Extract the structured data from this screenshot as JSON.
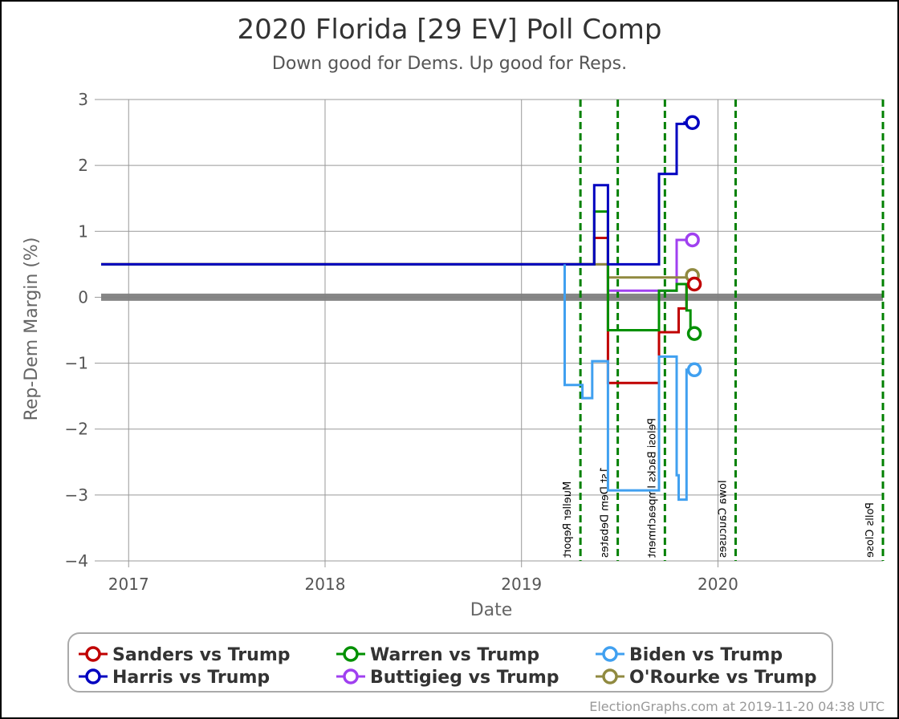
{
  "chart_data": {
    "type": "line",
    "title": "2020 Florida [29 EV] Poll Comp",
    "subtitle": "Down good for Dems. Up good for Reps.",
    "xlabel": "Date",
    "ylabel": "Rep-Dem Margin (%)",
    "ylim": [
      -4,
      3
    ],
    "xlim": [
      2016.86,
      2020.84
    ],
    "yticks": [
      3,
      2,
      1,
      0,
      -1,
      -2,
      -3,
      -4
    ],
    "ytick_labels": [
      "3",
      "2",
      "1",
      "0",
      "−1",
      "−2",
      "−3",
      "−4"
    ],
    "xticks": [
      2017,
      2018,
      2019,
      2020
    ],
    "xtick_labels": [
      "2017",
      "2018",
      "2019",
      "2020"
    ],
    "grid": true,
    "legend_position": "bottom",
    "events": [
      {
        "label": "Mueller Report",
        "x": 2019.3
      },
      {
        "label": "1st Dem Debates",
        "x": 2019.49
      },
      {
        "label": "Pelosi Backs Impeachment",
        "x": 2019.73
      },
      {
        "label": "Iowa Caucuses",
        "x": 2020.09
      },
      {
        "label": "Polls Close",
        "x": 2020.84
      }
    ],
    "series": [
      {
        "name": "Sanders vs Trump",
        "color": "#c00000",
        "points": [
          [
            2016.86,
            0.5
          ],
          [
            2019.37,
            0.5
          ],
          [
            2019.37,
            0.9
          ],
          [
            2019.44,
            0.9
          ],
          [
            2019.44,
            -1.3
          ],
          [
            2019.7,
            -1.3
          ],
          [
            2019.7,
            -0.53
          ],
          [
            2019.8,
            -0.53
          ],
          [
            2019.8,
            -0.17
          ],
          [
            2019.84,
            -0.17
          ],
          [
            2019.84,
            0.2
          ],
          [
            2019.88,
            0.2
          ]
        ]
      },
      {
        "name": "Warren vs Trump",
        "color": "#009000",
        "points": [
          [
            2016.86,
            0.5
          ],
          [
            2019.37,
            0.5
          ],
          [
            2019.37,
            1.3
          ],
          [
            2019.44,
            1.3
          ],
          [
            2019.44,
            -0.5
          ],
          [
            2019.7,
            -0.5
          ],
          [
            2019.7,
            0.1
          ],
          [
            2019.79,
            0.1
          ],
          [
            2019.79,
            0.2
          ],
          [
            2019.84,
            0.2
          ],
          [
            2019.84,
            -0.2
          ],
          [
            2019.86,
            -0.2
          ],
          [
            2019.86,
            -0.55
          ],
          [
            2019.88,
            -0.55
          ]
        ]
      },
      {
        "name": "Biden vs Trump",
        "color": "#40a0f0",
        "points": [
          [
            2019.22,
            0.5
          ],
          [
            2019.22,
            -1.33
          ],
          [
            2019.31,
            -1.33
          ],
          [
            2019.31,
            -1.53
          ],
          [
            2019.36,
            -1.53
          ],
          [
            2019.36,
            -0.97
          ],
          [
            2019.44,
            -0.97
          ],
          [
            2019.44,
            -2.93
          ],
          [
            2019.7,
            -2.93
          ],
          [
            2019.7,
            -0.9
          ],
          [
            2019.79,
            -0.9
          ],
          [
            2019.79,
            -2.7
          ],
          [
            2019.8,
            -2.7
          ],
          [
            2019.8,
            -3.07
          ],
          [
            2019.84,
            -3.07
          ],
          [
            2019.84,
            -1.1
          ],
          [
            2019.88,
            -1.1
          ]
        ]
      },
      {
        "name": "Harris vs Trump",
        "color": "#0000c0",
        "points": [
          [
            2016.86,
            0.5
          ],
          [
            2019.37,
            0.5
          ],
          [
            2019.37,
            1.7
          ],
          [
            2019.44,
            1.7
          ],
          [
            2019.44,
            0.5
          ],
          [
            2019.7,
            0.5
          ],
          [
            2019.7,
            1.87
          ],
          [
            2019.79,
            1.87
          ],
          [
            2019.79,
            2.63
          ],
          [
            2019.83,
            2.63
          ],
          [
            2019.83,
            2.65
          ],
          [
            2019.87,
            2.65
          ]
        ]
      },
      {
        "name": "Buttigieg vs Trump",
        "color": "#a040f0",
        "points": [
          [
            2016.86,
            0.5
          ],
          [
            2019.44,
            0.5
          ],
          [
            2019.44,
            0.1
          ],
          [
            2019.79,
            0.1
          ],
          [
            2019.79,
            0.87
          ],
          [
            2019.87,
            0.87
          ]
        ]
      },
      {
        "name": "O'Rourke vs Trump",
        "color": "#908a40",
        "points": [
          [
            2016.86,
            0.5
          ],
          [
            2019.44,
            0.5
          ],
          [
            2019.44,
            0.3
          ],
          [
            2019.86,
            0.3
          ],
          [
            2019.86,
            0.33
          ],
          [
            2019.87,
            0.33
          ]
        ]
      }
    ],
    "legend_order": [
      "Sanders vs Trump",
      "Warren vs Trump",
      "Biden vs Trump",
      "Harris vs Trump",
      "Buttigieg vs Trump",
      "O'Rourke vs Trump"
    ]
  },
  "footer": {
    "credit": "ElectionGraphs.com at 2019-11-20 04:38 UTC"
  }
}
